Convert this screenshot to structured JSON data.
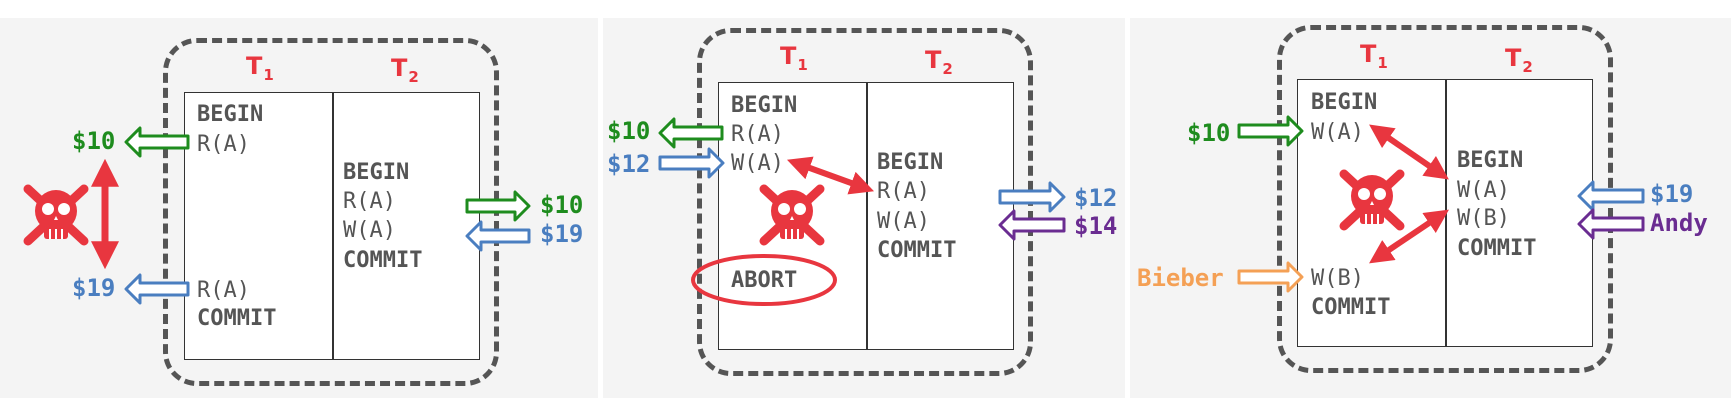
{
  "colors": {
    "red": "#e8363f",
    "green": "#1e8c1e",
    "blue": "#4a7ec0",
    "purple": "#6a2c91",
    "orange": "#f4a055",
    "frame": "#555555",
    "text": "#555555"
  },
  "icons": [
    "skull-and-crossbones-icon",
    "arrow-icon"
  ],
  "panel1": {
    "t1_label": "T",
    "t1_sub": "1",
    "t2_label": "T",
    "t2_sub": "2",
    "t1_ops": [
      "BEGIN",
      "R(A)",
      "R(A)",
      "COMMIT"
    ],
    "t2_ops": [
      "BEGIN",
      "R(A)",
      "W(A)",
      "COMMIT"
    ],
    "vals": [
      "$10",
      "$19",
      "$10",
      "$19"
    ]
  },
  "panel2": {
    "t1_label": "T",
    "t1_sub": "1",
    "t2_label": "T",
    "t2_sub": "2",
    "t1_ops": [
      "BEGIN",
      "R(A)",
      "W(A)",
      "ABORT"
    ],
    "t2_ops": [
      "BEGIN",
      "R(A)",
      "W(A)",
      "COMMIT"
    ],
    "vals": [
      "$10",
      "$12",
      "$12",
      "$14"
    ]
  },
  "panel3": {
    "t1_label": "T",
    "t1_sub": "1",
    "t2_label": "T",
    "t2_sub": "2",
    "t1_ops": [
      "BEGIN",
      "W(A)",
      "W(B)",
      "COMMIT"
    ],
    "t2_ops": [
      "BEGIN",
      "W(A)",
      "W(B)",
      "COMMIT"
    ],
    "vals": [
      "$10",
      "Bieber",
      "$19",
      "Andy"
    ]
  }
}
